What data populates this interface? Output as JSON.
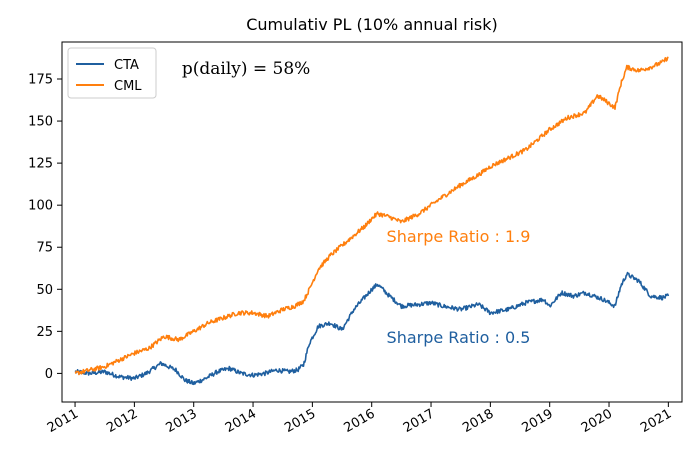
{
  "chart_data": {
    "type": "line",
    "title": "Cumulativ PL (10% annual risk)",
    "xlabel": "",
    "ylabel": "",
    "xlim": [
      2010.78,
      2021.23
    ],
    "ylim": [
      -17,
      197
    ],
    "x_ticks": [
      2011,
      2012,
      2013,
      2014,
      2015,
      2016,
      2017,
      2018,
      2019,
      2020,
      2021
    ],
    "x_tick_labels": [
      "2011",
      "2012",
      "2013",
      "2014",
      "2015",
      "2016",
      "2017",
      "2018",
      "2019",
      "2020",
      "2021"
    ],
    "y_ticks": [
      0,
      25,
      50,
      75,
      100,
      125,
      150,
      175
    ],
    "y_tick_labels": [
      "0",
      "25",
      "50",
      "75",
      "100",
      "125",
      "150",
      "175"
    ],
    "grid": false,
    "legend_position": "top-left",
    "series": [
      {
        "name": "CTA",
        "color": "#1f5f9f",
        "x": [
          2011.0,
          2011.25,
          2011.5,
          2011.75,
          2012.0,
          2012.2,
          2012.45,
          2012.7,
          2012.85,
          2013.0,
          2013.2,
          2013.4,
          2013.6,
          2013.8,
          2014.0,
          2014.2,
          2014.4,
          2014.6,
          2014.75,
          2014.85,
          2014.95,
          2015.1,
          2015.3,
          2015.5,
          2015.7,
          2015.85,
          2016.0,
          2016.1,
          2016.3,
          2016.5,
          2016.8,
          2017.0,
          2017.2,
          2017.5,
          2017.8,
          2018.0,
          2018.3,
          2018.6,
          2018.9,
          2019.0,
          2019.2,
          2019.4,
          2019.6,
          2019.9,
          2020.1,
          2020.2,
          2020.3,
          2020.5,
          2020.7,
          2020.9,
          2021.0
        ],
        "y": [
          1,
          0,
          1,
          -2,
          -3,
          0,
          6,
          2,
          -4,
          -6,
          -3,
          1,
          3,
          0,
          -1,
          0,
          2,
          1,
          2,
          5,
          18,
          28,
          30,
          26,
          38,
          44,
          50,
          53,
          46,
          40,
          41,
          42,
          40,
          38,
          41,
          36,
          38,
          42,
          44,
          40,
          48,
          46,
          48,
          44,
          40,
          52,
          59,
          55,
          46,
          45,
          46
        ]
      },
      {
        "name": "CML",
        "color": "#ff7f0e",
        "x": [
          2011.0,
          2011.25,
          2011.5,
          2011.75,
          2012.0,
          2012.25,
          2012.5,
          2012.75,
          2013.0,
          2013.25,
          2013.5,
          2013.75,
          2014.0,
          2014.25,
          2014.5,
          2014.7,
          2014.85,
          2014.95,
          2015.1,
          2015.3,
          2015.5,
          2015.7,
          2015.9,
          2016.0,
          2016.1,
          2016.3,
          2016.5,
          2016.8,
          2017.0,
          2017.2,
          2017.5,
          2017.8,
          2018.0,
          2018.3,
          2018.6,
          2019.0,
          2019.3,
          2019.6,
          2019.8,
          2019.9,
          2020.1,
          2020.2,
          2020.3,
          2020.5,
          2020.7,
          2020.9,
          2021.0
        ],
        "y": [
          0,
          2,
          4,
          8,
          12,
          15,
          22,
          20,
          25,
          30,
          33,
          36,
          36,
          34,
          38,
          40,
          43,
          50,
          62,
          70,
          76,
          82,
          88,
          92,
          95,
          93,
          90,
          95,
          100,
          105,
          112,
          118,
          123,
          128,
          133,
          145,
          152,
          155,
          165,
          163,
          158,
          172,
          182,
          180,
          182,
          185,
          188
        ]
      }
    ],
    "annotations": [
      {
        "text": "p(daily) = 58%",
        "x": 2012.8,
        "y": 178,
        "color": "#000000"
      },
      {
        "text": "Sharpe Ratio : 1.9",
        "x": 2016.25,
        "y": 78,
        "color": "#ff7f0e"
      },
      {
        "text": "Sharpe Ratio : 0.5",
        "x": 2016.25,
        "y": 18,
        "color": "#1f5f9f"
      }
    ]
  }
}
